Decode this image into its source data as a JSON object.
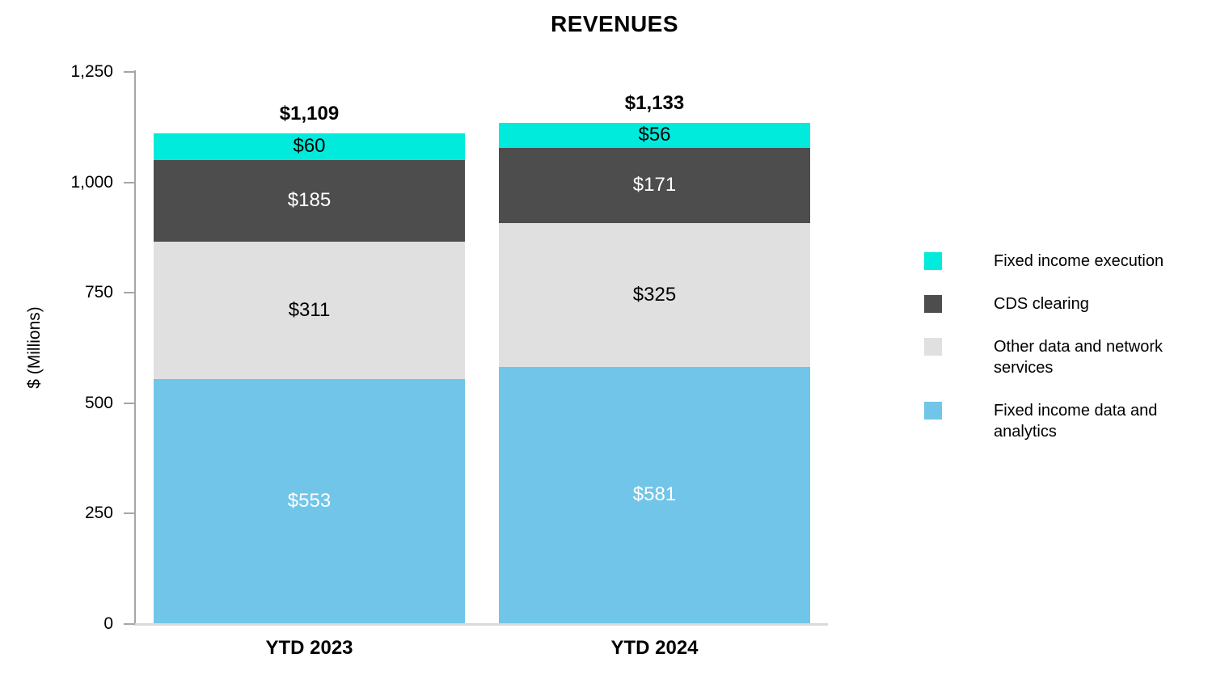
{
  "chart_data": {
    "type": "bar",
    "stacked": true,
    "title": "REVENUES",
    "xlabel": "",
    "ylabel": "$ (Millions)",
    "ylim": [
      0,
      1250
    ],
    "ytick_values": [
      0,
      250,
      500,
      750,
      1000,
      1250
    ],
    "ytick_labels": [
      "0",
      "250",
      "500",
      "750",
      "1,000",
      "1,250"
    ],
    "grid": false,
    "legend_position": "right",
    "categories": [
      "YTD 2023",
      "YTD 2024"
    ],
    "totals_labels": [
      "$1,109",
      "$1,133"
    ],
    "totals_values": [
      1109,
      1133
    ],
    "series": [
      {
        "name": "Fixed income data and analytics",
        "color": "#71c5e8",
        "label_color": "#ffffff",
        "values": [
          553,
          581
        ],
        "labels": [
          "$553",
          "$581"
        ]
      },
      {
        "name": "Other data and network services",
        "color": "#e0e0e0",
        "label_color": "#000000",
        "values": [
          311,
          325
        ],
        "labels": [
          "$311",
          "$325"
        ]
      },
      {
        "name": "CDS clearing",
        "color": "#4d4d4d",
        "label_color": "#ffffff",
        "values": [
          185,
          171
        ],
        "labels": [
          "$185",
          "$171"
        ]
      },
      {
        "name": "Fixed income execution",
        "color": "#00ebdc",
        "label_color": "#000000",
        "values": [
          60,
          56
        ],
        "labels": [
          "$60",
          "$56"
        ]
      }
    ],
    "legend": [
      {
        "label": "Fixed income execution",
        "color": "#00ebdc"
      },
      {
        "label": "CDS clearing",
        "color": "#4d4d4d"
      },
      {
        "label": "Other data and network services",
        "color": "#e0e0e0"
      },
      {
        "label": "Fixed income data and analytics",
        "color": "#71c5e8"
      }
    ],
    "colors": {
      "axis_line": "#a6a6a6",
      "baseline": "#d9d9d9",
      "background": "#ffffff",
      "text": "#000000"
    }
  }
}
